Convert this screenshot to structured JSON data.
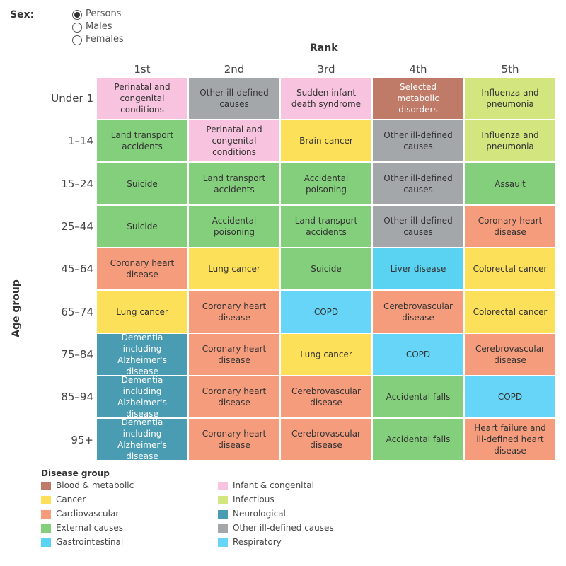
{
  "filter": {
    "label": "Sex:",
    "options": [
      "Persons",
      "Males",
      "Females"
    ],
    "selected": 0
  },
  "rank_label": "Rank",
  "age_label": "Age group",
  "grid": {
    "ranks": [
      "1st",
      "2nd",
      "3rd",
      "4th",
      "5th"
    ],
    "rows": [
      {
        "age": "Under 1",
        "cells": [
          {
            "text": "Perinatal and congenital conditions",
            "color": "#f7c3de"
          },
          {
            "text": "Other ill-defined causes",
            "color": "#a3a7aa"
          },
          {
            "text": "Sudden infant death syndrome",
            "color": "#f7c3de"
          },
          {
            "text": "Selected metabolic disorders",
            "color": "#c07a68"
          },
          {
            "text": "Influenza and pneumonia",
            "color": "#d3e57e"
          }
        ]
      },
      {
        "age": "1–14",
        "cells": [
          {
            "text": "Land transport accidents",
            "color": "#84cf7c"
          },
          {
            "text": "Perinatal and congenital conditions",
            "color": "#f7c3de"
          },
          {
            "text": "Brain cancer",
            "color": "#fde05a"
          },
          {
            "text": "Other ill-defined causes",
            "color": "#a3a7aa"
          },
          {
            "text": "Influenza and pneumonia",
            "color": "#d3e57e"
          }
        ]
      },
      {
        "age": "15–24",
        "cells": [
          {
            "text": "Suicide",
            "color": "#84cf7c"
          },
          {
            "text": "Land transport accidents",
            "color": "#84cf7c"
          },
          {
            "text": "Accidental poisoning",
            "color": "#84cf7c"
          },
          {
            "text": "Other ill-defined causes",
            "color": "#a3a7aa"
          },
          {
            "text": "Assault",
            "color": "#84cf7c"
          }
        ]
      },
      {
        "age": "25–44",
        "cells": [
          {
            "text": "Suicide",
            "color": "#84cf7c"
          },
          {
            "text": "Accidental poisoning",
            "color": "#84cf7c"
          },
          {
            "text": "Land transport accidents",
            "color": "#84cf7c"
          },
          {
            "text": "Other ill-defined causes",
            "color": "#a3a7aa"
          },
          {
            "text": "Coronary heart disease",
            "color": "#f59c7c"
          }
        ]
      },
      {
        "age": "45–64",
        "cells": [
          {
            "text": "Coronary heart disease",
            "color": "#f59c7c"
          },
          {
            "text": "Lung cancer",
            "color": "#fde05a"
          },
          {
            "text": "Suicide",
            "color": "#84cf7c"
          },
          {
            "text": "Liver disease",
            "color": "#5ad3f2"
          },
          {
            "text": "Colorectal cancer",
            "color": "#fde05a"
          }
        ]
      },
      {
        "age": "65–74",
        "cells": [
          {
            "text": "Lung cancer",
            "color": "#fde05a"
          },
          {
            "text": "Coronary heart disease",
            "color": "#f59c7c"
          },
          {
            "text": "COPD",
            "color": "#66d5f7"
          },
          {
            "text": "Cerebrovascular disease",
            "color": "#f59c7c"
          },
          {
            "text": "Colorectal cancer",
            "color": "#fde05a"
          }
        ]
      },
      {
        "age": "75–84",
        "cells": [
          {
            "text": "Dementia including Alzheimer's disease",
            "color": "#4a9cb2"
          },
          {
            "text": "Coronary heart disease",
            "color": "#f59c7c"
          },
          {
            "text": "Lung cancer",
            "color": "#fde05a"
          },
          {
            "text": "COPD",
            "color": "#66d5f7"
          },
          {
            "text": "Cerebrovascular disease",
            "color": "#f59c7c"
          }
        ]
      },
      {
        "age": "85–94",
        "cells": [
          {
            "text": "Dementia including Alzheimer's disease",
            "color": "#4a9cb2"
          },
          {
            "text": "Coronary heart disease",
            "color": "#f59c7c"
          },
          {
            "text": "Cerebrovascular disease",
            "color": "#f59c7c"
          },
          {
            "text": "Accidental falls",
            "color": "#84cf7c"
          },
          {
            "text": "COPD",
            "color": "#66d5f7"
          }
        ]
      },
      {
        "age": "95+",
        "cells": [
          {
            "text": "Dementia including Alzheimer's disease",
            "color": "#4a9cb2"
          },
          {
            "text": "Coronary heart disease",
            "color": "#f59c7c"
          },
          {
            "text": "Cerebrovascular disease",
            "color": "#f59c7c"
          },
          {
            "text": "Accidental falls",
            "color": "#84cf7c"
          },
          {
            "text": "Heart failure and ill-defined heart disease",
            "color": "#f59c7c"
          }
        ]
      }
    ]
  },
  "legend": {
    "title": "Disease group",
    "items": [
      {
        "name": "Blood & metabolic",
        "color": "#c07a68"
      },
      {
        "name": "Cancer",
        "color": "#fde05a"
      },
      {
        "name": "Cardiovascular",
        "color": "#f59c7c"
      },
      {
        "name": "External causes",
        "color": "#84cf7c"
      },
      {
        "name": "Gastrointestinal",
        "color": "#5ad3f2"
      },
      {
        "name": "Infant & congenital",
        "color": "#f7c3de"
      },
      {
        "name": "Infectious",
        "color": "#d3e57e"
      },
      {
        "name": "Neurological",
        "color": "#4a9cb2"
      },
      {
        "name": "Other ill-defined causes",
        "color": "#a3a7aa"
      },
      {
        "name": "Respiratory",
        "color": "#66d5f7"
      }
    ]
  }
}
